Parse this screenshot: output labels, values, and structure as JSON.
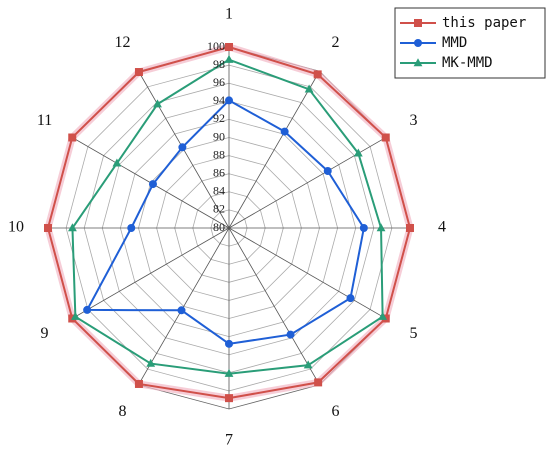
{
  "chart_data": {
    "type": "radar",
    "categories": [
      "1",
      "2",
      "3",
      "4",
      "5",
      "6",
      "7",
      "8",
      "9",
      "10",
      "11",
      "12"
    ],
    "ylim": [
      80,
      100
    ],
    "yticks": [
      80,
      82,
      84,
      86,
      88,
      90,
      92,
      94,
      96,
      98,
      100
    ],
    "grid": true,
    "legend": "upper right",
    "series": [
      {
        "name": "this paper",
        "color": "#d0504a",
        "marker": "square",
        "values": [
          100,
          99.6,
          100,
          100,
          100,
          99.7,
          98.8,
          99.9,
          100,
          100,
          100,
          99.9
        ]
      },
      {
        "name": "MMD",
        "color": "#1f5fd6",
        "marker": "circle",
        "values": [
          94.1,
          92.3,
          92.6,
          94.9,
          95.5,
          93.6,
          92.8,
          90.5,
          98.1,
          90.8,
          89.7,
          90.3
        ]
      },
      {
        "name": "MK-MMD",
        "color": "#2a9d78",
        "marker": "triangle",
        "values": [
          98.6,
          97.7,
          96.5,
          96.8,
          99.6,
          97.5,
          96.1,
          97.3,
          99.6,
          97.3,
          94.3,
          95.8
        ]
      }
    ]
  }
}
